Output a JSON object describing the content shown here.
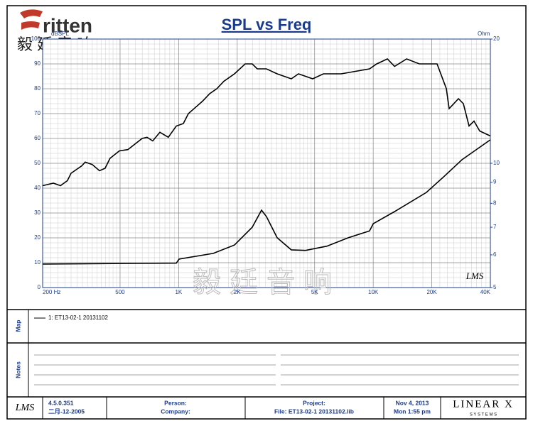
{
  "header": {
    "logo": "ritten",
    "logo_cn": "毅廷音响"
  },
  "watermark": "毅廷音响",
  "chart_data": {
    "type": "line",
    "title": "SPL vs Freq",
    "ylabel": "dBSPL",
    "y2label": "Ohm",
    "signature": "LMS",
    "xscale": "log",
    "y2scale": "log",
    "grid": true,
    "minor_grid": true,
    "xlim": [
      200,
      40000
    ],
    "xticks": [
      {
        "value": 200,
        "label": "200 Hz"
      },
      500,
      {
        "value": 1000,
        "label": "1K"
      },
      {
        "value": 2000,
        "label": "2K"
      },
      {
        "value": 5000,
        "label": "5K"
      },
      {
        "value": 10000,
        "label": "10K"
      },
      {
        "value": 20000,
        "label": "20K"
      },
      {
        "value": 40000,
        "label": "40K"
      }
    ],
    "ylim": [
      0,
      100
    ],
    "yticks": [
      0,
      10,
      20,
      30,
      40,
      50,
      60,
      70,
      80,
      90,
      100
    ],
    "y2lim": [
      5,
      20
    ],
    "y2ticks": [
      5,
      6,
      7,
      8,
      9,
      10,
      20
    ],
    "legend": "1: ET13-02-1   20131102",
    "series": [
      {
        "color": "#000000",
        "x": [
          200,
          227,
          247,
          268,
          280,
          318,
          331,
          360,
          392,
          419,
          444,
          496,
          548,
          649,
          688,
          736,
          801,
          885,
          973,
          1057,
          1122,
          1220,
          1327,
          1443,
          1570,
          1707,
          1936,
          2198,
          2389,
          2535,
          2825,
          3208,
          3793,
          4130,
          4886,
          5546,
          6844,
          8094,
          9572,
          10420,
          11830,
          12870,
          14850,
          17270,
          21290,
          23770,
          24550,
          27420,
          29050,
          31070,
          32970,
          35260,
          40000
        ],
        "values": [
          41,
          42,
          41,
          43,
          46,
          49,
          50.5,
          49.5,
          47,
          48,
          52,
          55,
          55.5,
          60,
          60.5,
          59,
          62.5,
          60.5,
          65,
          66,
          70,
          72.5,
          75,
          78,
          80,
          83,
          86,
          90,
          90,
          88,
          88,
          86,
          84,
          86,
          84,
          86,
          86,
          87,
          88,
          90,
          92,
          89,
          92,
          90,
          90,
          80,
          72,
          76,
          74,
          65,
          67,
          63,
          61
        ]
      },
      {
        "color": "#000000",
        "axis": "y2",
        "x": [
          200,
          600,
          973,
          1005,
          1506,
          1936,
          2389,
          2667,
          2825,
          3208,
          3793,
          4490,
          5780,
          7440,
          9572,
          10000,
          12870,
          18760,
          23170,
          28580,
          40000
        ],
        "values": [
          5.7,
          5.72,
          5.73,
          5.86,
          6.05,
          6.34,
          7.0,
          7.7,
          7.43,
          6.6,
          6.17,
          6.15,
          6.3,
          6.6,
          6.86,
          7.14,
          7.64,
          8.5,
          9.3,
          10.2,
          11.4
        ]
      }
    ]
  },
  "panels": {
    "map": "Map",
    "notes": "Notes"
  },
  "footer": {
    "logo": "LMS",
    "version": "4.5.0.351",
    "build_date": "二月-12-2005",
    "person": "Person:",
    "company": "Company:",
    "project": "Project:",
    "file": "File: ET13-02-1 20131102.lib",
    "date": "Nov  4, 2013",
    "time": "Mon  1:55 pm",
    "brand": "LINEAR X",
    "brand_sub": "S Y S T E M S"
  }
}
